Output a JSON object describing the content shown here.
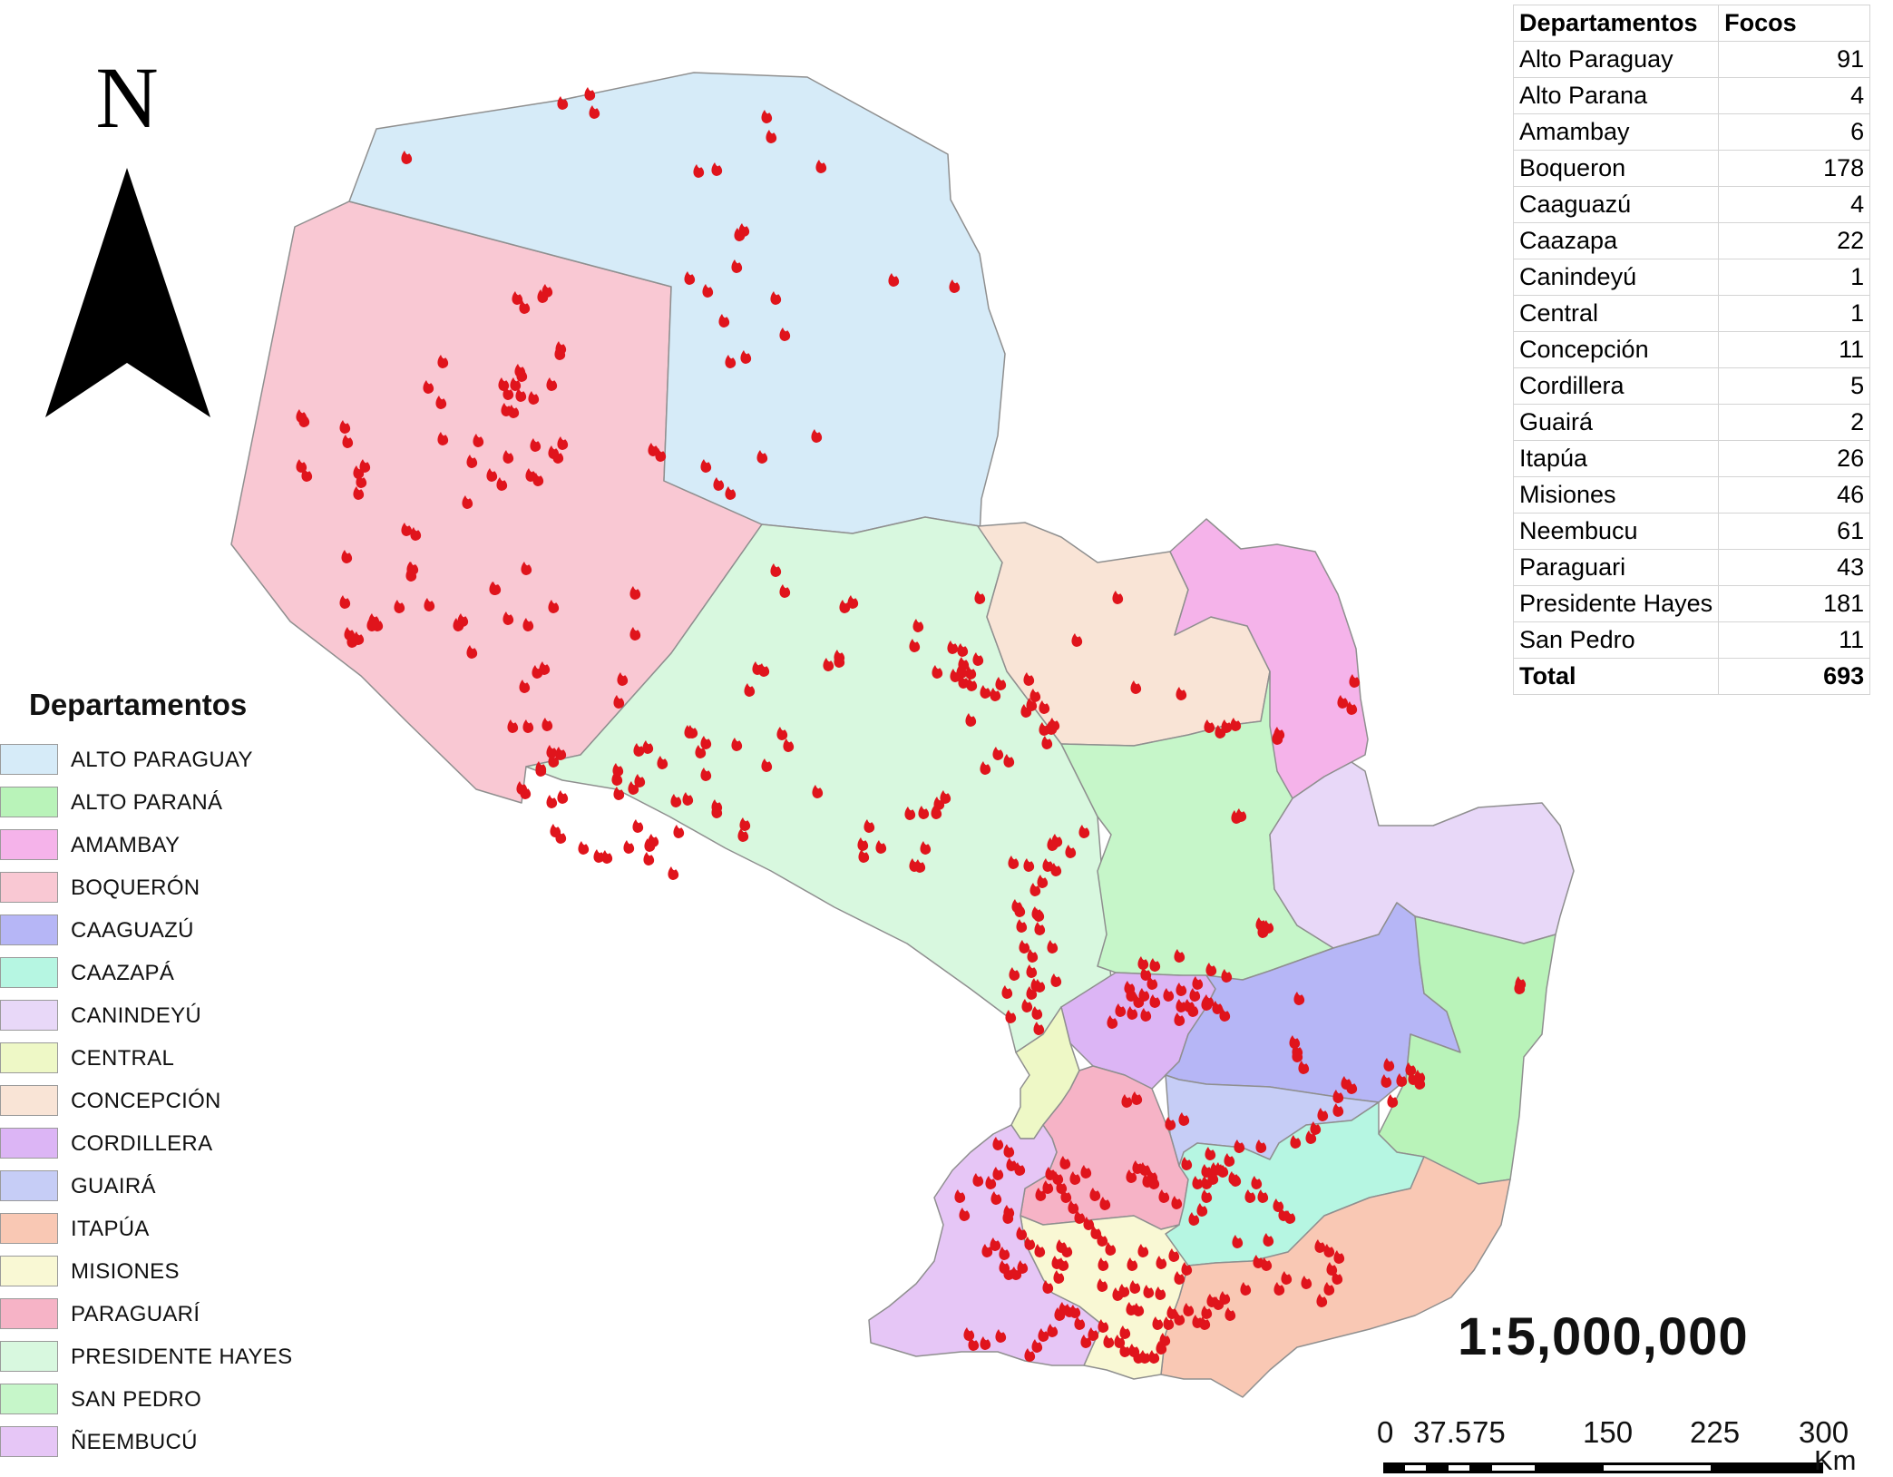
{
  "north_arrow": {
    "label": "N"
  },
  "legend": {
    "title": "Departamentos",
    "items": [
      {
        "name": "ALTO PARAGUAY",
        "color": "#d6ebf8"
      },
      {
        "name": "ALTO PARANÁ",
        "color": "#b9f3b9"
      },
      {
        "name": "AMAMBAY",
        "color": "#f5b3ea"
      },
      {
        "name": "BOQUERÓN",
        "color": "#f9c8d3"
      },
      {
        "name": "CAAGUAZÚ",
        "color": "#b6b6f6"
      },
      {
        "name": "CAAZAPÁ",
        "color": "#b6f6e2"
      },
      {
        "name": "CANINDEYÚ",
        "color": "#e8d8f8"
      },
      {
        "name": "CENTRAL",
        "color": "#eef8c6"
      },
      {
        "name": "CONCEPCIÓN",
        "color": "#f9e4d6"
      },
      {
        "name": "CORDILLERA",
        "color": "#dcb5f5"
      },
      {
        "name": "GUAIRÁ",
        "color": "#c6cdf6"
      },
      {
        "name": "ITAPÚA",
        "color": "#f9c8b4"
      },
      {
        "name": "MISIONES",
        "color": "#f9f8d4"
      },
      {
        "name": "PARAGUARÍ",
        "color": "#f6b3c6"
      },
      {
        "name": "PRESIDENTE HAYES",
        "color": "#d8f8df"
      },
      {
        "name": "SAN PEDRO",
        "color": "#c6f6c9"
      },
      {
        "name": "ÑEEMBUCÚ",
        "color": "#e6c6f6"
      }
    ]
  },
  "focos_table": {
    "headers": [
      "Departamentos",
      "Focos"
    ],
    "rows": [
      [
        "Alto Paraguay",
        "91"
      ],
      [
        "Alto Parana",
        "4"
      ],
      [
        "Amambay",
        "6"
      ],
      [
        "Boqueron",
        "178"
      ],
      [
        "Caaguazú",
        "4"
      ],
      [
        "Caazapa",
        "22"
      ],
      [
        "Canindeyú",
        "1"
      ],
      [
        "Central",
        "1"
      ],
      [
        "Concepción",
        "11"
      ],
      [
        "Cordillera",
        "5"
      ],
      [
        "Guairá",
        "2"
      ],
      [
        "Itapúa",
        "26"
      ],
      [
        "Misiones",
        "46"
      ],
      [
        "Neembucu",
        "61"
      ],
      [
        "Paraguari",
        "43"
      ],
      [
        "Presidente Hayes",
        "181"
      ],
      [
        "San Pedro",
        "11"
      ]
    ],
    "total": [
      "Total",
      "693"
    ]
  },
  "scale": {
    "ratio": "1:5,000,000",
    "bar_labels": [
      "0",
      "37.5",
      "75",
      "150",
      "225",
      "300"
    ],
    "unit": "Km"
  },
  "fire_color": "#e0141c"
}
